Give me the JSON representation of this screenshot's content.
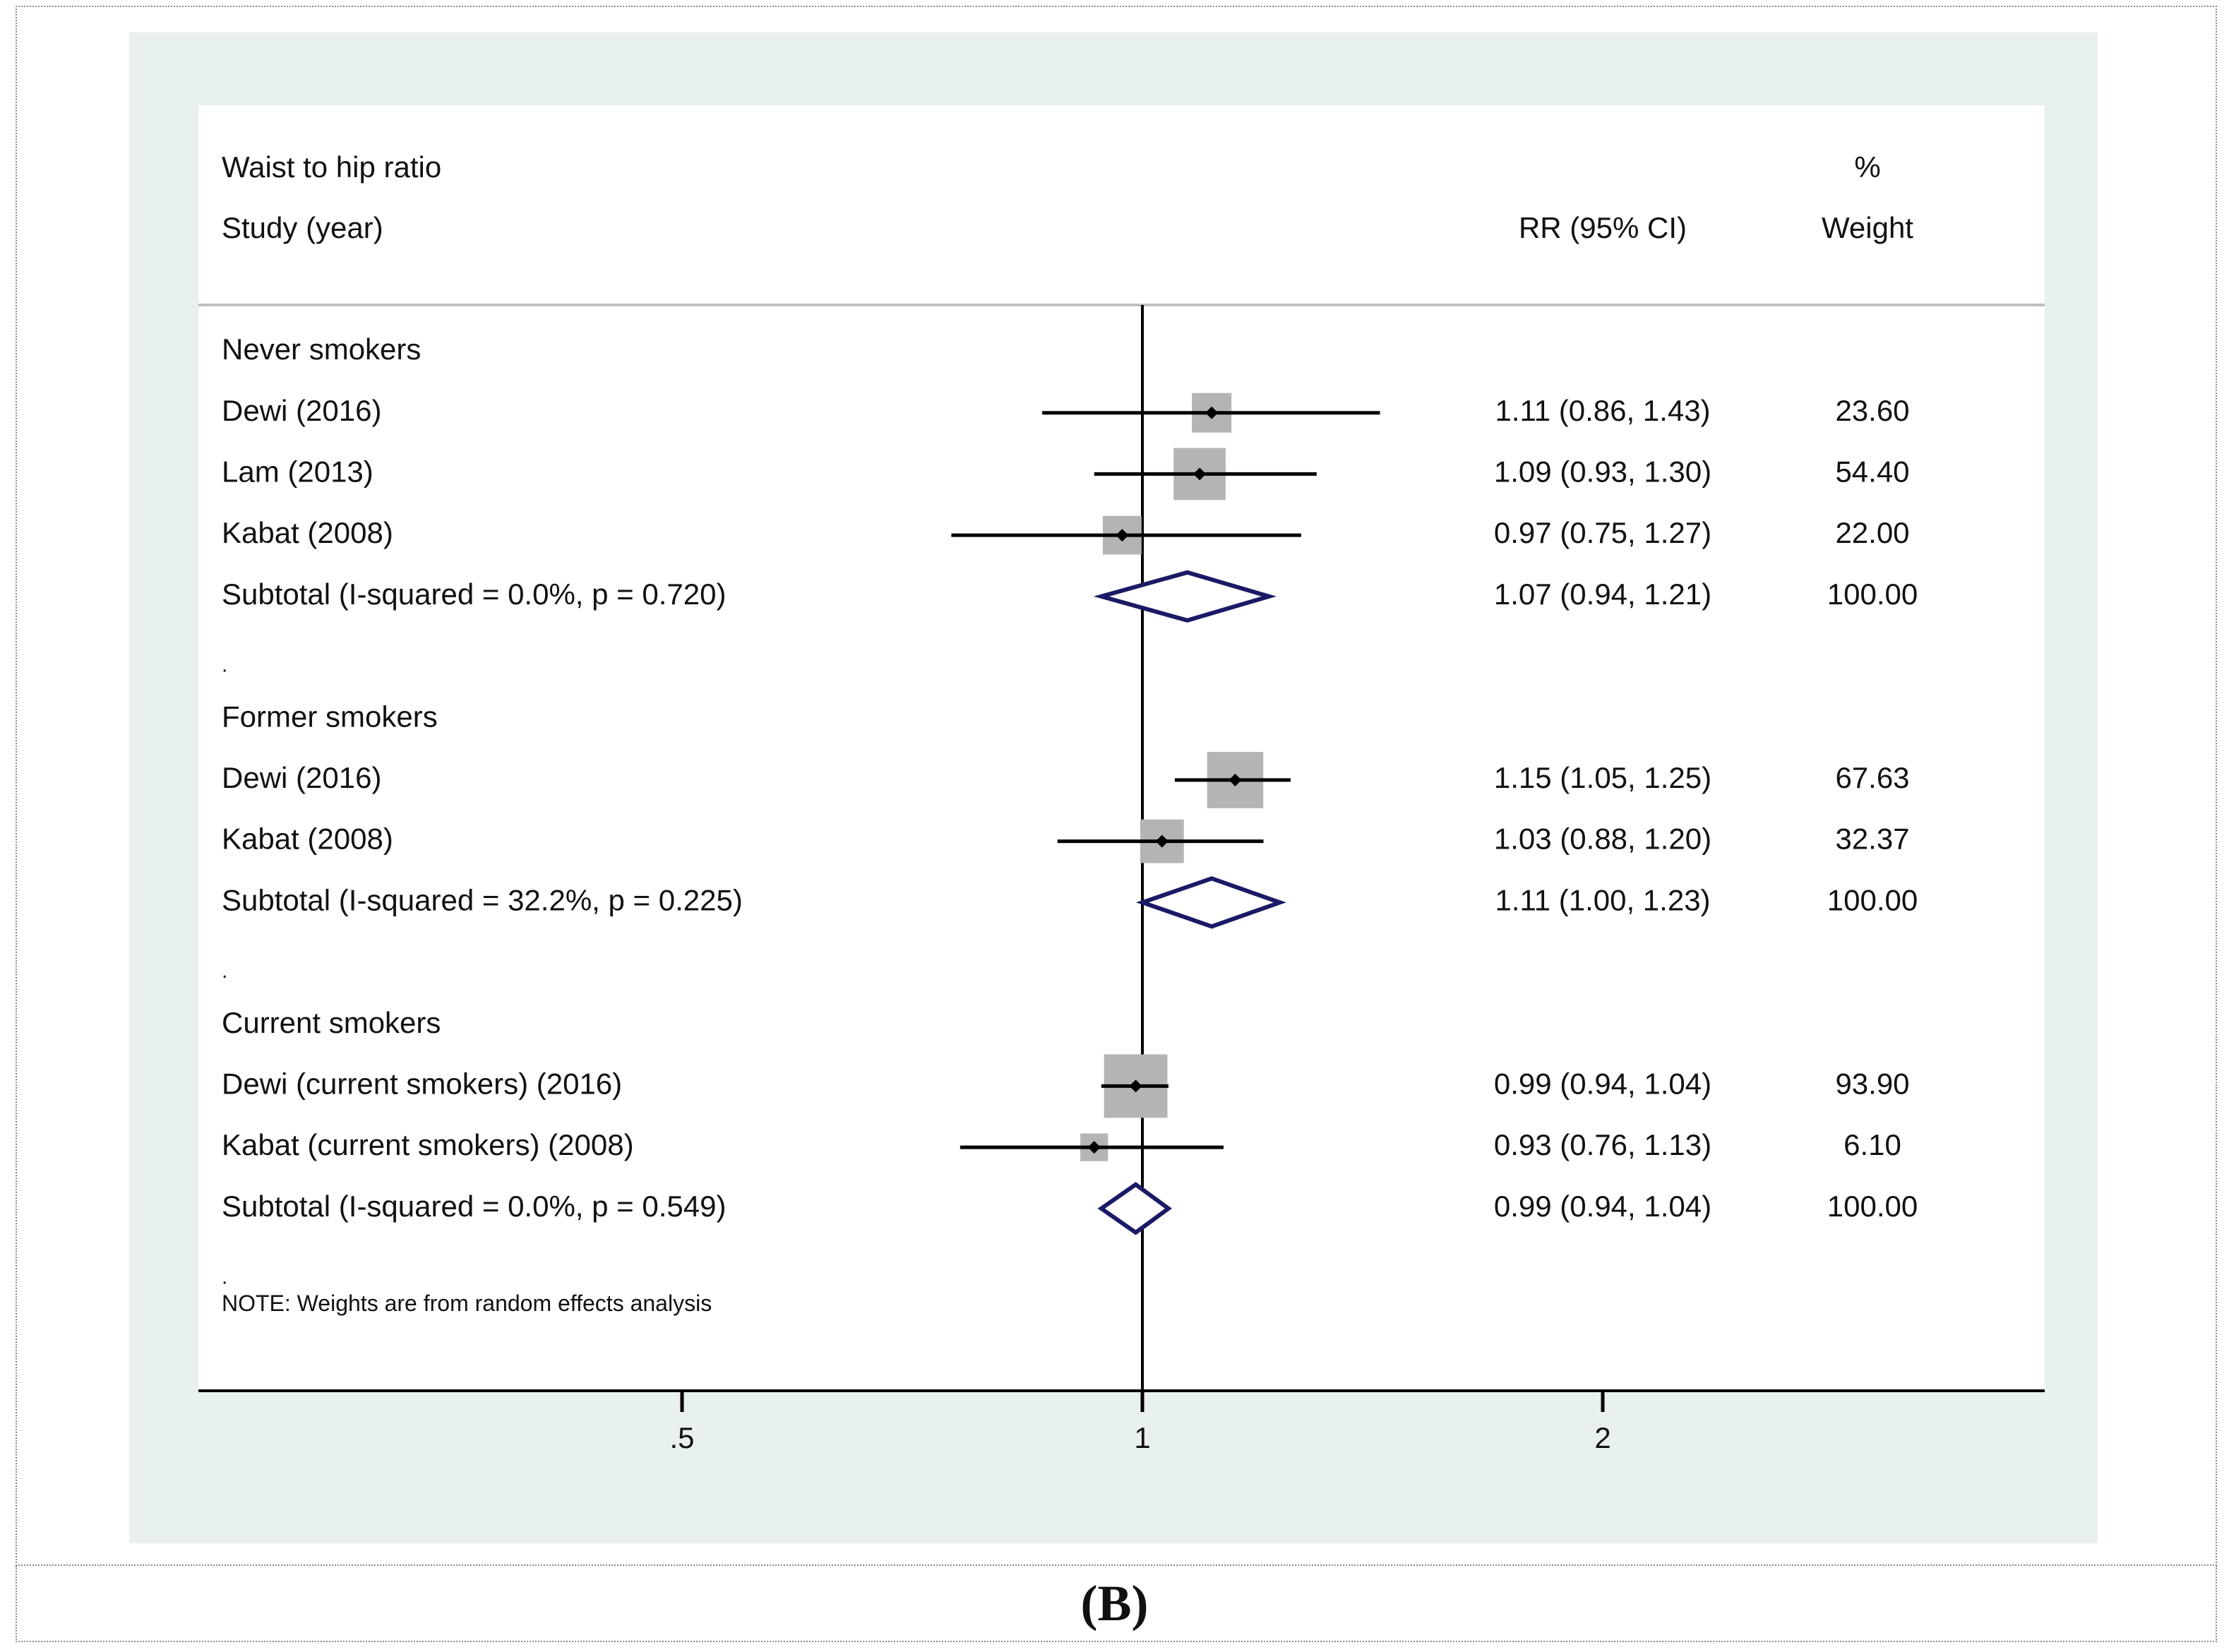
{
  "caption": {
    "open": "(",
    "label": "B",
    "close": ")"
  },
  "chart_data": {
    "type": "forest",
    "title": "Waist to hip ratio",
    "study_header": "Study (year)",
    "effect_header": "RR (95% CI)",
    "weight_header_line1": "%",
    "weight_header_line2": "Weight",
    "scale": "log",
    "x_ticks": [
      {
        "value": 0.5,
        "label": ".5"
      },
      {
        "value": 1,
        "label": "1"
      },
      {
        "value": 2,
        "label": "2"
      }
    ],
    "null_line": 1,
    "rows": [
      {
        "kind": "group",
        "label": "Never smokers"
      },
      {
        "kind": "study",
        "label": "Dewi (2016)",
        "rr": 1.11,
        "lo": 0.86,
        "hi": 1.43,
        "ci_text": "1.11 (0.86, 1.43)",
        "weight": 23.6,
        "weight_text": "23.60"
      },
      {
        "kind": "study",
        "label": "Lam (2013)",
        "rr": 1.09,
        "lo": 0.93,
        "hi": 1.3,
        "ci_text": "1.09 (0.93, 1.30)",
        "weight": 54.4,
        "weight_text": "54.40"
      },
      {
        "kind": "study",
        "label": "Kabat (2008)",
        "rr": 0.97,
        "lo": 0.75,
        "hi": 1.27,
        "ci_text": "0.97 (0.75, 1.27)",
        "weight": 22.0,
        "weight_text": "22.00"
      },
      {
        "kind": "subtotal",
        "label": "Subtotal  (I-squared = 0.0%, p = 0.720)",
        "rr": 1.07,
        "lo": 0.94,
        "hi": 1.21,
        "ci_text": "1.07 (0.94, 1.21)",
        "weight_text": "100.00"
      },
      {
        "kind": "spacer",
        "label": "."
      },
      {
        "kind": "group",
        "label": "Former smokers"
      },
      {
        "kind": "study",
        "label": "Dewi (2016)",
        "rr": 1.15,
        "lo": 1.05,
        "hi": 1.25,
        "ci_text": "1.15 (1.05, 1.25)",
        "weight": 67.63,
        "weight_text": "67.63"
      },
      {
        "kind": "study",
        "label": "Kabat (2008)",
        "rr": 1.03,
        "lo": 0.88,
        "hi": 1.2,
        "ci_text": "1.03 (0.88, 1.20)",
        "weight": 32.37,
        "weight_text": "32.37"
      },
      {
        "kind": "subtotal",
        "label": "Subtotal  (I-squared = 32.2%, p = 0.225)",
        "rr": 1.11,
        "lo": 1.0,
        "hi": 1.23,
        "ci_text": "1.11 (1.00, 1.23)",
        "weight_text": "100.00"
      },
      {
        "kind": "spacer",
        "label": "."
      },
      {
        "kind": "group",
        "label": "Current smokers"
      },
      {
        "kind": "study",
        "label": "Dewi (current smokers) (2016)",
        "rr": 0.99,
        "lo": 0.94,
        "hi": 1.04,
        "ci_text": "0.99 (0.94, 1.04)",
        "weight": 93.9,
        "weight_text": "93.90"
      },
      {
        "kind": "study",
        "label": "Kabat (current smokers) (2008)",
        "rr": 0.93,
        "lo": 0.76,
        "hi": 1.13,
        "ci_text": "0.93 (0.76, 1.13)",
        "weight": 6.1,
        "weight_text": "6.10"
      },
      {
        "kind": "subtotal",
        "label": "Subtotal  (I-squared = 0.0%, p = 0.549)",
        "rr": 0.99,
        "lo": 0.94,
        "hi": 1.04,
        "ci_text": "0.99 (0.94, 1.04)",
        "weight_text": "100.00"
      },
      {
        "kind": "spacer",
        "label": "."
      }
    ],
    "note": "NOTE: Weights are from random effects analysis",
    "colors": {
      "marker_box": "#b4b4b4",
      "diamond": "#1a1a66",
      "line": "#000000",
      "panel_bg": "#e8f0f0",
      "divider": "#c0c0c0"
    }
  }
}
